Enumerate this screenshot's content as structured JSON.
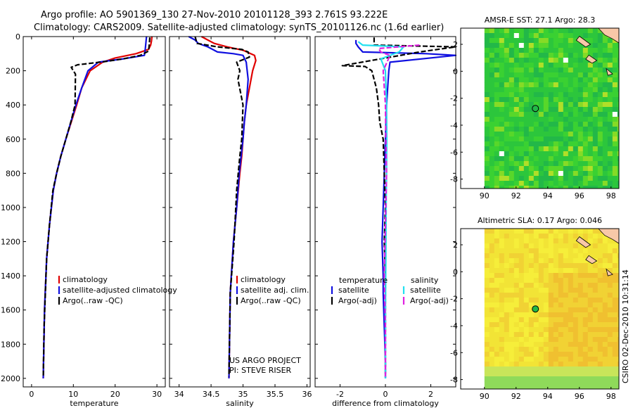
{
  "header": {
    "line1": "Argo profile: AO 5901369_130 27-Nov-2010 20101128_393 2.761S 93.222E",
    "line2": "Climatology: CARS2009. Satellite-adjusted climatology: synTS_20101126.nc (1.6d earlier)"
  },
  "footer": {
    "credit": "CSIRO 02-Dec-2010 10:31:14",
    "project": "US ARGO PROJECT",
    "pi": "PI: STEVE RISER"
  },
  "colors": {
    "climatology": "#e00000",
    "satellite": "#1010e0",
    "argo": "#000000",
    "sal_sat": "#20e0f0",
    "sal_argo": "#e020e0"
  },
  "chart_data": [
    {
      "id": "temperature",
      "type": "line",
      "title": "",
      "xlabel": "temperature",
      "ylabel": "",
      "xlim": [
        -2,
        32
      ],
      "ylim": [
        2050,
        0
      ],
      "xticks": [
        0,
        10,
        20,
        30
      ],
      "xticklabels": [
        "0",
        "10",
        "20",
        "30"
      ],
      "yticks": [
        0,
        200,
        400,
        600,
        800,
        1000,
        1200,
        1400,
        1600,
        1800,
        2000
      ],
      "yticklabels": [
        "0",
        "200",
        "400",
        "600",
        "800",
        "1000",
        "1200",
        "1400",
        "1600",
        "1800",
        "2000"
      ],
      "legend": {
        "position": "lower-right",
        "entries": [
          {
            "label": "climatology",
            "series": "climatology"
          },
          {
            "label": "satellite-adjusted climatology",
            "series": "satellite"
          },
          {
            "label": "Argo(..raw -QC)",
            "series": "argo"
          }
        ]
      },
      "series": [
        {
          "name": "climatology",
          "color_key": "climatology",
          "dash": false,
          "x": [
            28.8,
            28.7,
            28.5,
            28.0,
            25.0,
            20.0,
            17.0,
            14.0,
            12.0,
            10.8,
            9.5,
            8.2,
            7.0,
            6.0,
            5.2,
            4.3,
            3.6,
            3.1,
            2.8
          ],
          "y": [
            0,
            25,
            50,
            75,
            100,
            125,
            150,
            200,
            300,
            400,
            500,
            600,
            700,
            800,
            900,
            1100,
            1300,
            1600,
            2000
          ]
        },
        {
          "name": "satellite",
          "color_key": "satellite",
          "dash": false,
          "x": [
            27.5,
            27.4,
            27.3,
            27.2,
            27.0,
            22.0,
            16.0,
            13.5,
            12.0,
            10.6,
            9.4,
            8.2,
            7.0,
            6.0,
            5.2,
            4.3,
            3.6,
            3.1,
            2.8
          ],
          "y": [
            0,
            25,
            50,
            75,
            110,
            130,
            150,
            200,
            300,
            400,
            500,
            600,
            700,
            800,
            900,
            1100,
            1300,
            1600,
            2000
          ]
        },
        {
          "name": "argo",
          "color_key": "argo",
          "dash": true,
          "x": [
            28.3,
            28.2,
            28.0,
            26.0,
            22.0,
            18.0,
            14.5,
            11.0,
            9.5,
            10.5,
            10.4,
            9.4,
            8.2,
            7.0,
            6.0,
            5.1,
            4.3,
            3.6,
            3.0,
            2.8
          ],
          "y": [
            5,
            40,
            85,
            110,
            130,
            145,
            155,
            165,
            180,
            220,
            400,
            500,
            600,
            700,
            800,
            900,
            1100,
            1300,
            1700,
            1995
          ]
        }
      ]
    },
    {
      "id": "salinity",
      "type": "line",
      "title": "",
      "xlabel": "salinity",
      "ylabel": "",
      "xlim": [
        33.85,
        36.05
      ],
      "ylim": [
        2050,
        0
      ],
      "xticks": [
        34,
        34.5,
        35,
        35.5,
        36
      ],
      "xticklabels": [
        "34",
        "34.5",
        "35",
        "35.5",
        "36"
      ],
      "legend": {
        "position": "lower-right",
        "entries": [
          {
            "label": "climatology",
            "series": "climatology"
          },
          {
            "label": "satellite adj. clim.",
            "series": "satellite"
          },
          {
            "label": "Argo(..raw -QC)",
            "series": "argo"
          }
        ]
      },
      "series": [
        {
          "name": "climatology",
          "color_key": "climatology",
          "dash": false,
          "x": [
            34.35,
            34.45,
            34.55,
            34.75,
            35.0,
            35.18,
            35.2,
            35.15,
            35.05,
            35.02,
            35.0,
            34.98,
            34.95,
            34.9,
            34.85,
            34.8,
            34.78
          ],
          "y": [
            0,
            20,
            40,
            60,
            80,
            110,
            140,
            200,
            400,
            500,
            600,
            700,
            800,
            1000,
            1200,
            1500,
            2000
          ]
        },
        {
          "name": "satellite",
          "color_key": "satellite",
          "dash": false,
          "x": [
            34.15,
            34.25,
            34.3,
            34.45,
            34.6,
            34.85,
            35.0,
            35.05,
            35.08,
            35.05,
            35.02,
            35.0,
            34.97,
            34.94,
            34.9,
            34.85,
            34.8,
            34.78
          ],
          "y": [
            0,
            20,
            40,
            60,
            90,
            100,
            110,
            150,
            250,
            400,
            500,
            600,
            700,
            800,
            1000,
            1200,
            1500,
            2000
          ]
        },
        {
          "name": "argo",
          "color_key": "argo",
          "dash": true,
          "x": [
            34.25,
            34.28,
            34.6,
            34.98,
            35.08,
            35.1,
            34.9,
            34.95,
            34.92,
            35.0,
            34.98,
            34.95,
            34.9,
            34.86,
            34.8,
            34.78
          ],
          "y": [
            0,
            40,
            60,
            75,
            90,
            120,
            150,
            200,
            250,
            400,
            600,
            700,
            900,
            1200,
            1500,
            1990
          ]
        }
      ]
    },
    {
      "id": "difference",
      "type": "line",
      "title": "",
      "xlabel": "difference from climatology",
      "ylabel": "",
      "xlim": [
        -3.1,
        3.1
      ],
      "ylim": [
        2050,
        0
      ],
      "xticks": [
        -2,
        0,
        2
      ],
      "xticklabels": [
        "-2",
        "0",
        "2"
      ],
      "legend": {
        "position": "lower-center",
        "headers": [
          "temperature",
          "salinity"
        ],
        "entries": [
          {
            "label": "satellite",
            "series": "temp_sat"
          },
          {
            "label": "Argo(-adj)",
            "series": "temp_argo"
          },
          {
            "label": "satellite",
            "series": "sal_sat"
          },
          {
            "label": "Argo(-adj)",
            "series": "sal_argo"
          }
        ]
      },
      "series": [
        {
          "name": "temp_sat",
          "color_key": "satellite",
          "dash": false,
          "x": [
            -1.3,
            -1.3,
            -1.2,
            -1.0,
            1.8,
            3.1,
            0.2,
            0.15,
            0.1,
            0.05,
            0.0,
            -0.05,
            -0.1,
            -0.15,
            -0.1,
            -0.1,
            -0.05,
            0.0,
            0.0
          ],
          "y": [
            20,
            40,
            60,
            90,
            100,
            110,
            150,
            200,
            300,
            400,
            600,
            800,
            1000,
            1200,
            1400,
            1500,
            1700,
            1900,
            2000
          ]
        },
        {
          "name": "temp_argo",
          "color_key": "argo",
          "dash": true,
          "x": [
            -0.5,
            -0.5,
            3.1,
            1.5,
            -1.9,
            -0.9,
            -0.6,
            -0.4,
            -0.3,
            -0.25,
            -0.1,
            -0.05,
            0.0,
            -0.05,
            0.0,
            0.0,
            0.0
          ],
          "y": [
            5,
            50,
            60,
            90,
            170,
            175,
            200,
            300,
            400,
            500,
            600,
            800,
            1000,
            1200,
            1400,
            1600,
            1995
          ]
        },
        {
          "name": "sal_sat",
          "color_key": "sal_sat",
          "dash": false,
          "x": [
            -1.2,
            -1.0,
            0.8,
            0.6,
            -0.2,
            0.0,
            0.05,
            0.06,
            0.05,
            0.03,
            0.02,
            0.0,
            0.0
          ],
          "y": [
            30,
            50,
            60,
            90,
            130,
            200,
            400,
            600,
            800,
            1000,
            1300,
            1600,
            2000
          ]
        },
        {
          "name": "sal_argo",
          "color_key": "sal_argo",
          "dash": true,
          "x": [
            1.5,
            -0.3,
            -0.2,
            0.2,
            -0.1,
            0.0,
            0.02,
            0.05,
            0.0,
            -0.05,
            0.0,
            0.0
          ],
          "y": [
            50,
            70,
            90,
            110,
            200,
            400,
            600,
            800,
            1100,
            1400,
            1700,
            1990
          ]
        }
      ]
    },
    {
      "id": "sst_map",
      "type": "heatmap",
      "title": "AMSR-E SST: 27.1 Argo: 28.3",
      "xlim": [
        88.5,
        98.5
      ],
      "ylim": [
        -8.7,
        3.2
      ],
      "xticks": [
        90,
        92,
        94,
        96,
        98
      ],
      "xticklabels": [
        "90",
        "92",
        "94",
        "96",
        "98"
      ],
      "yticks": [
        2,
        0,
        -2,
        -4,
        -6,
        -8
      ],
      "yticklabels": [
        "2",
        "0",
        "-2",
        "-4",
        "-6",
        "-8"
      ],
      "data_xlim": [
        90.0,
        98.5
      ],
      "data_ylim": [
        -8.7,
        3.2
      ],
      "colorscale": [
        "#22b848",
        "#2cc63c",
        "#3ad132",
        "#58d72a",
        "#86db26",
        "#b0df28"
      ],
      "marker": {
        "lon": 93.222,
        "lat": -2.761,
        "fill": "#22b848"
      }
    },
    {
      "id": "sla_map",
      "type": "heatmap",
      "title": "Altimetric SLA: 0.17 Argo: 0.046",
      "xlim": [
        88.5,
        98.5
      ],
      "ylim": [
        -8.7,
        3.2
      ],
      "xticks": [
        90,
        92,
        94,
        96,
        98
      ],
      "xticklabels": [
        "90",
        "92",
        "94",
        "96",
        "98"
      ],
      "yticks": [
        2,
        0,
        -2,
        -4,
        -6,
        -8
      ],
      "yticklabels": [
        "2",
        "0",
        "-2",
        "-4",
        "-6",
        "-8"
      ],
      "data_xlim": [
        90.0,
        98.5
      ],
      "data_ylim": [
        -8.7,
        3.2
      ],
      "colorscale": [
        "#f6ee3a",
        "#f2e436",
        "#f1d234",
        "#f0c030",
        "#eed33a",
        "#c8e55a",
        "#8fda5a"
      ],
      "marker": {
        "lon": 93.222,
        "lat": -2.761,
        "fill": "#22b848"
      }
    }
  ]
}
